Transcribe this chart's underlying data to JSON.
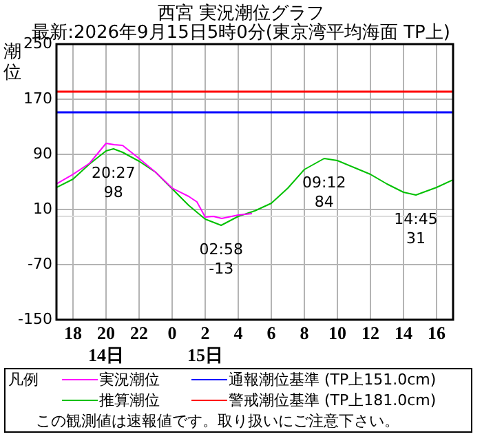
{
  "chart_data": {
    "type": "line",
    "title": "西宮 実況潮位グラフ",
    "subtitle": "最新:2026年9月15日5時0分(東京湾平均海面 TP上)",
    "ylabel": "潮位",
    "legend_title": "凡例",
    "legend": "bottom",
    "grid": true,
    "marker": "none",
    "line_style": "solid",
    "xlim": [
      "2026-09-14T17:00",
      "2026-09-15T17:00"
    ],
    "xticks": [
      {
        "value": "2026-09-14T18:00",
        "label": "18"
      },
      {
        "value": "2026-09-14T20:00",
        "label": "20\n14日"
      },
      {
        "value": "2026-09-14T22:00",
        "label": "22"
      },
      {
        "value": "2026-09-15T00:00",
        "label": "0"
      },
      {
        "value": "2026-09-15T02:00",
        "label": "2\n15日"
      },
      {
        "value": "2026-09-15T04:00",
        "label": "4"
      },
      {
        "value": "2026-09-15T06:00",
        "label": "6"
      },
      {
        "value": "2026-09-15T08:00",
        "label": "8"
      },
      {
        "value": "2026-09-15T10:00",
        "label": "10"
      },
      {
        "value": "2026-09-15T12:00",
        "label": "12"
      },
      {
        "value": "2026-09-15T14:00",
        "label": "14"
      },
      {
        "value": "2026-09-15T16:00",
        "label": "16"
      }
    ],
    "ylim": [
      -150,
      250
    ],
    "yticks": [
      -150,
      -70,
      10,
      90,
      170,
      250
    ],
    "series": [
      {
        "name": "実況潮位",
        "color": "#ff00ff",
        "x": [
          "2026-09-14T17:00",
          "2026-09-14T18:00",
          "2026-09-14T19:00",
          "2026-09-14T20:00",
          "2026-09-14T20:30",
          "2026-09-14T21:00",
          "2026-09-14T22:00",
          "2026-09-14T23:00",
          "2026-09-15T00:00",
          "2026-09-15T01:00",
          "2026-09-15T01:30",
          "2026-09-15T02:00",
          "2026-09-15T02:30",
          "2026-09-15T03:00",
          "2026-09-15T04:00",
          "2026-09-15T04:50"
        ],
        "values": [
          47,
          61,
          77,
          106,
          104,
          103,
          84,
          64,
          41,
          29,
          21,
          -1,
          0,
          -3,
          2,
          4
        ]
      },
      {
        "name": "推算潮位",
        "color": "#00c000",
        "x": [
          "2026-09-14T17:00",
          "2026-09-14T18:00",
          "2026-09-14T19:00",
          "2026-09-14T20:00",
          "2026-09-14T20:27",
          "2026-09-14T21:00",
          "2026-09-14T22:00",
          "2026-09-14T23:00",
          "2026-09-15T00:00",
          "2026-09-15T01:00",
          "2026-09-15T02:00",
          "2026-09-15T02:58",
          "2026-09-15T04:00",
          "2026-09-15T05:00",
          "2026-09-15T06:00",
          "2026-09-15T07:00",
          "2026-09-15T08:00",
          "2026-09-15T09:12",
          "2026-09-15T10:00",
          "2026-09-15T11:00",
          "2026-09-15T12:00",
          "2026-09-15T13:00",
          "2026-09-15T14:00",
          "2026-09-15T14:45",
          "2026-09-15T16:00",
          "2026-09-15T17:00"
        ],
        "values": [
          42,
          54,
          76,
          95,
          98,
          93,
          80,
          64,
          40,
          16,
          -4,
          -13,
          0,
          8,
          19,
          41,
          68,
          84,
          81,
          71,
          61,
          47,
          35,
          31,
          42,
          53
        ]
      }
    ],
    "ref_lines": [
      {
        "axis": "y",
        "value": 0,
        "color": "#dddddd"
      },
      {
        "axis": "y",
        "value": 151,
        "label": "通報潮位基準 (TP上151.0cm)",
        "color": "#0000ff"
      },
      {
        "axis": "y",
        "value": 181,
        "label": "警戒潮位基準 (TP上181.0cm)",
        "color": "#ff0000"
      }
    ],
    "annotations": [
      {
        "text": "20:27\n98",
        "x": "2026-09-14T20:27",
        "y": 98
      },
      {
        "text": "02:58\n-13",
        "x": "2026-09-15T02:58",
        "y": -13
      },
      {
        "text": "09:12\n84",
        "x": "2026-09-15T09:12",
        "y": 84
      },
      {
        "text": "14:45\n31",
        "x": "2026-09-15T14:45",
        "y": 31
      },
      "この観測値は速報値です。取り扱いにご注意下さい。"
    ]
  }
}
